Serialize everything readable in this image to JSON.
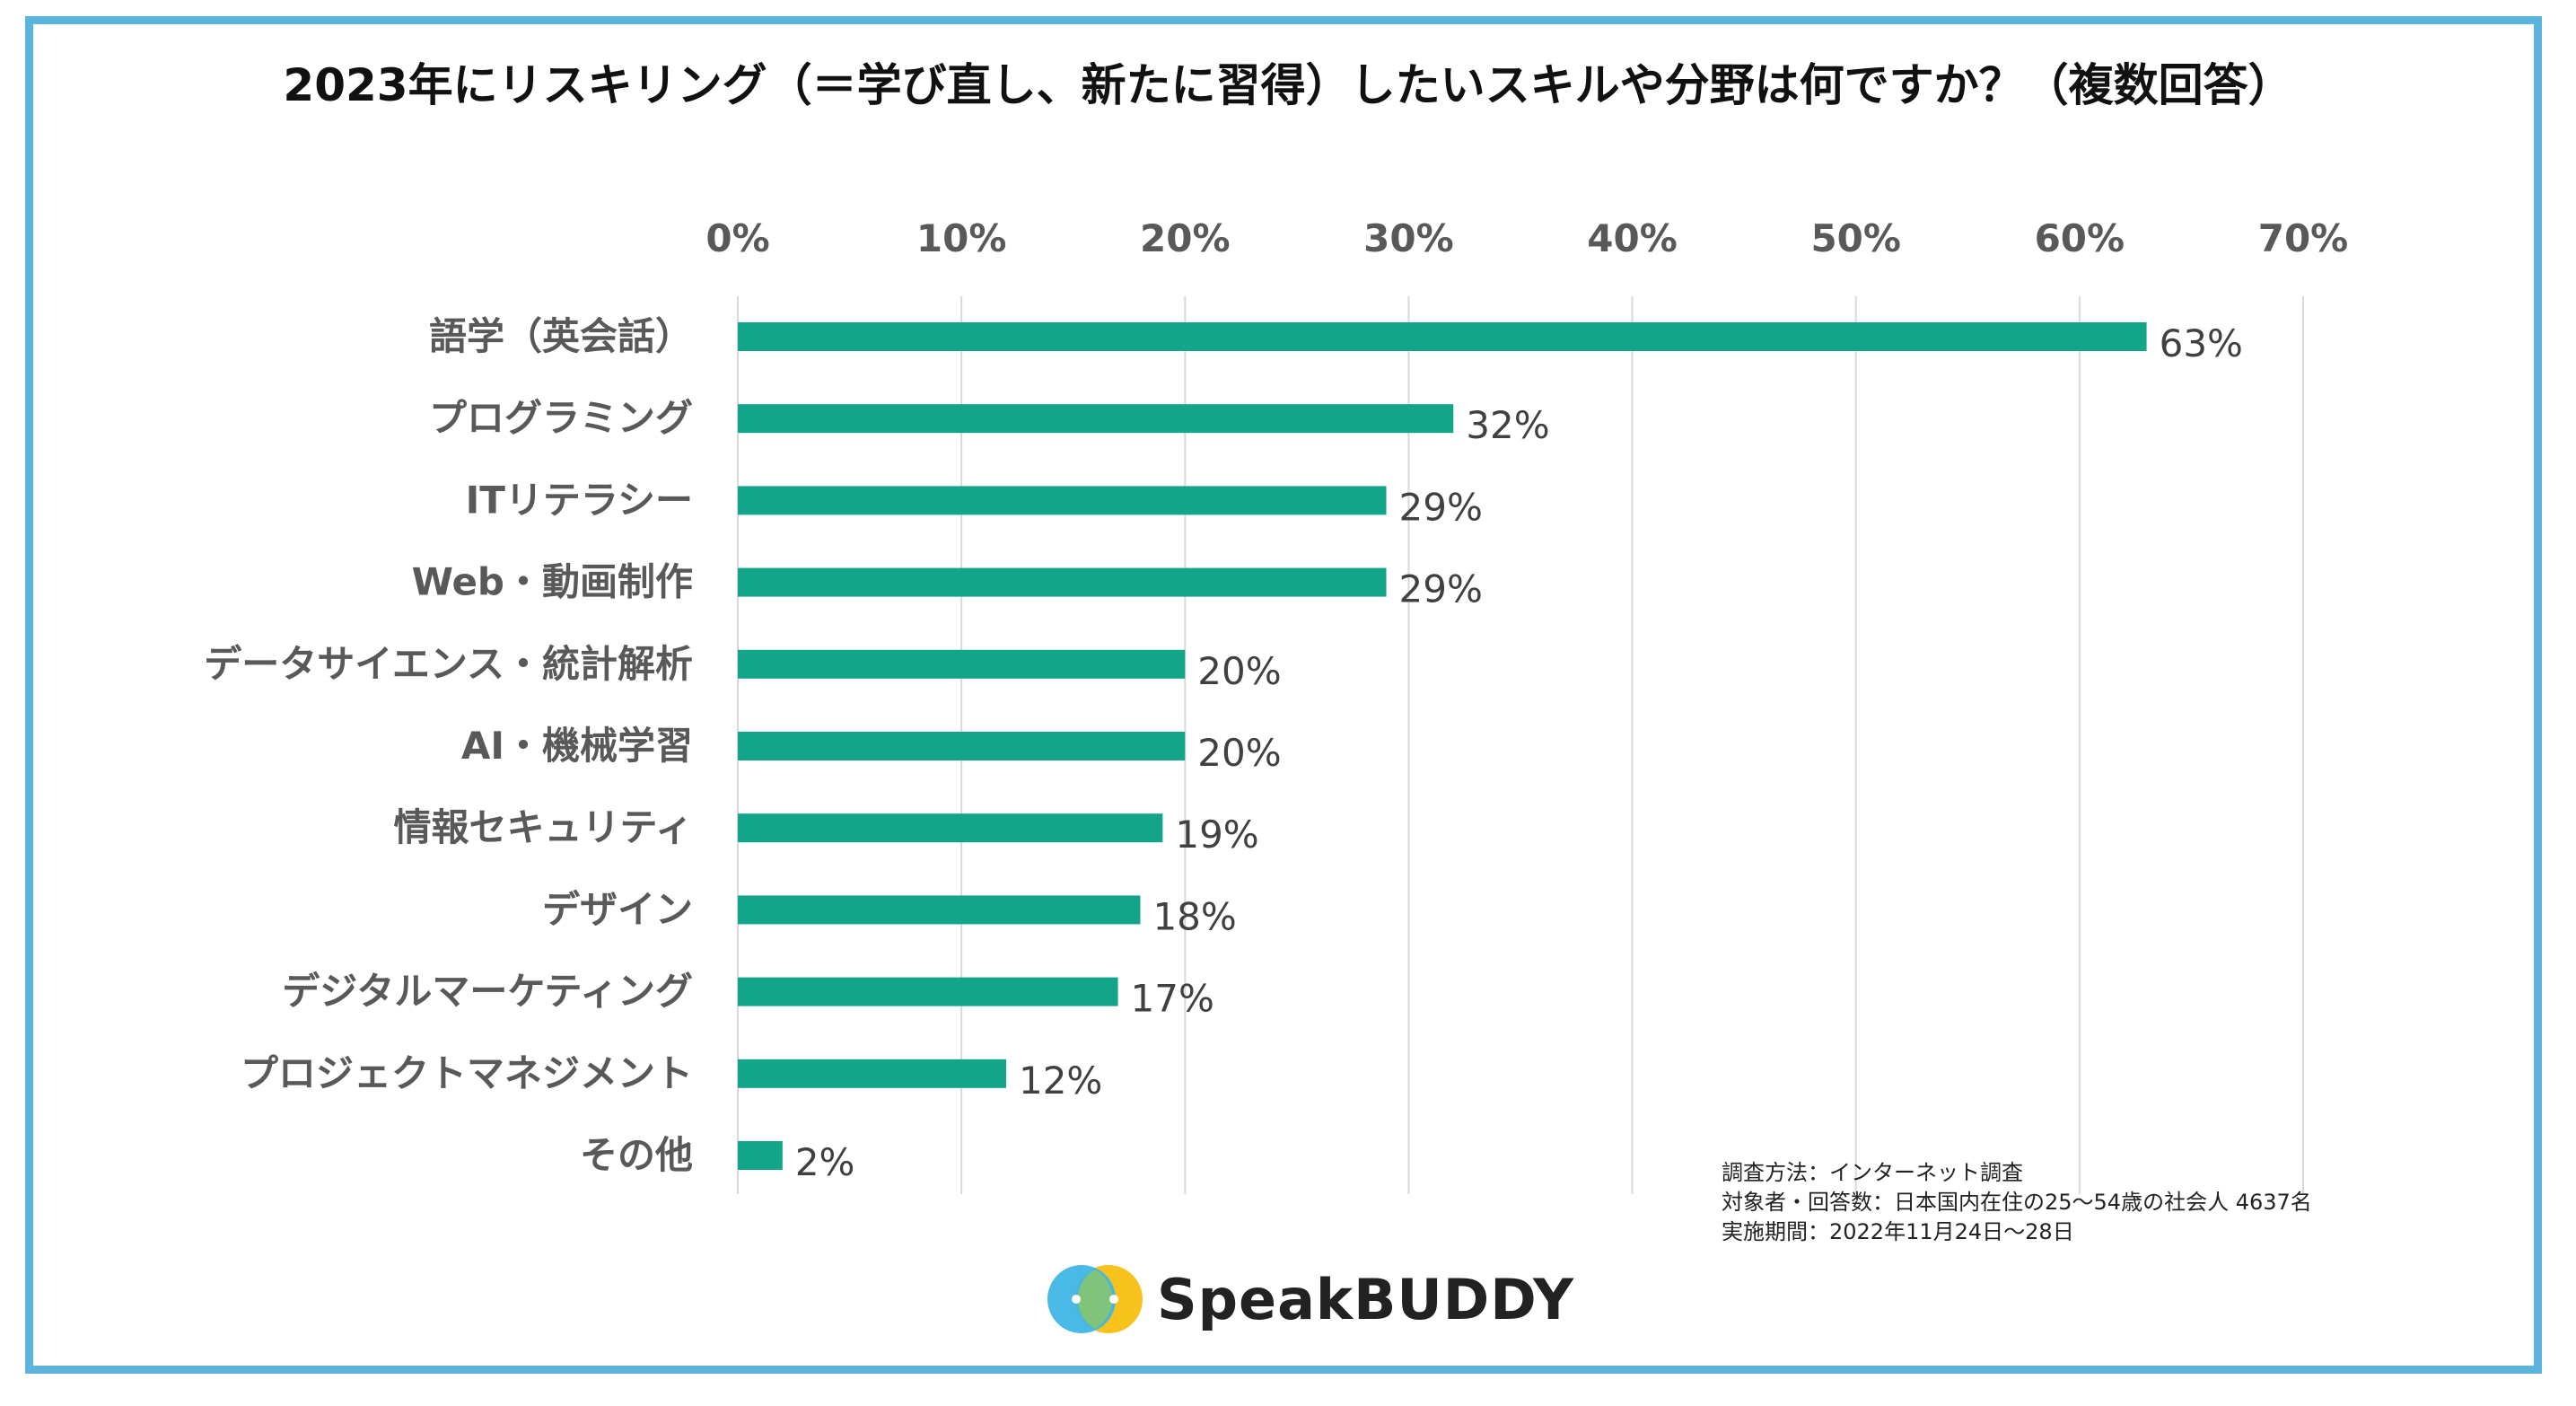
{
  "title": "2023年にリスキリング（＝学び直し、新たに習得）したいスキルや分野は何ですか？（複数回答）",
  "chart_data": {
    "type": "bar",
    "orientation": "horizontal",
    "categories": [
      "語学（英会話）",
      "プログラミング",
      "ITリテラシー",
      "Web・動画制作",
      "データサイエンス・統計解析",
      "AI・機械学習",
      "情報セキュリティ",
      "デザイン",
      "デジタルマーケティング",
      "プロジェクトマネジメント",
      "その他"
    ],
    "values": [
      63,
      32,
      29,
      29,
      20,
      20,
      19,
      18,
      17,
      12,
      2
    ],
    "value_labels": [
      "63%",
      "32%",
      "29%",
      "29%",
      "20%",
      "20%",
      "19%",
      "18%",
      "17%",
      "12%",
      "2%"
    ],
    "x_ticks": [
      "0%",
      "10%",
      "20%",
      "30%",
      "40%",
      "50%",
      "60%",
      "70%"
    ],
    "xlim": [
      0,
      70
    ],
    "x_axis_position": "top",
    "grid": true,
    "bar_color": "#12a58a",
    "xlabel": "",
    "ylabel": ""
  },
  "notes": {
    "method": "調査方法：インターネット調査",
    "target": "対象者・回答数：日本国内在住の25〜54歳の社会人 4637名",
    "period": "実施期間：2022年11月24日〜28日"
  },
  "logo": {
    "text": "SpeakBUDDY",
    "colors": [
      "#3fb5e6",
      "#f7c21b"
    ]
  },
  "frame_color": "#5ab4dc"
}
